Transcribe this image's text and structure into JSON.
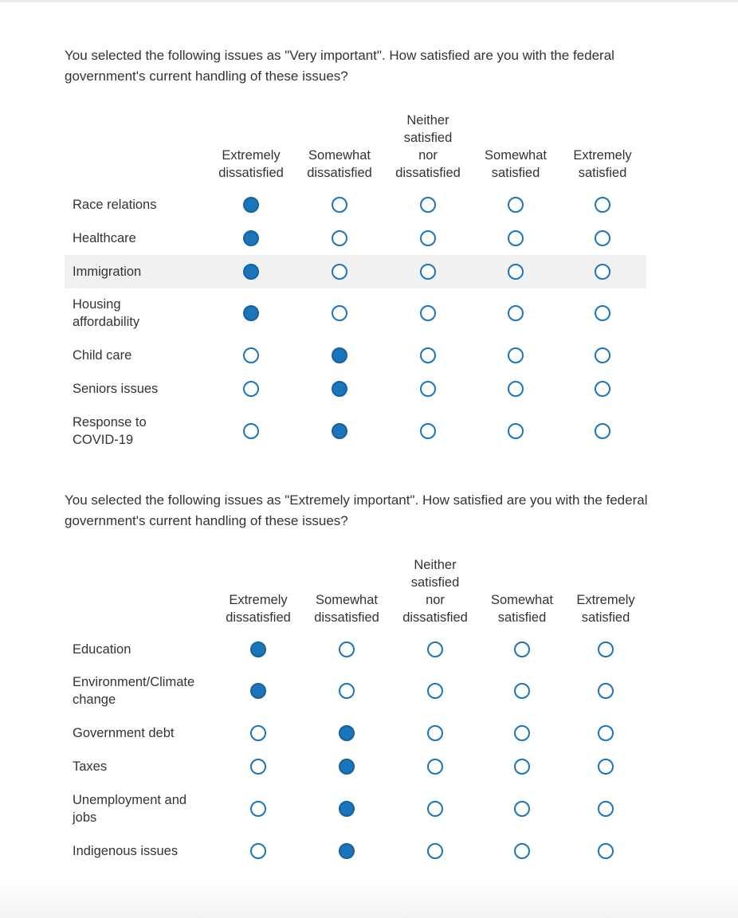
{
  "questions": [
    {
      "text": "You selected the following issues as \"Very important\". How satisfied are you with the federal government's current handling of these issues?",
      "columns": [
        [
          "Extremely",
          "dissatisfied"
        ],
        [
          "Somewhat",
          "dissatisfied"
        ],
        [
          "Neither",
          "satisfied",
          "nor",
          "dissatisfied"
        ],
        [
          "Somewhat",
          "satisfied"
        ],
        [
          "Extremely",
          "satisfied"
        ]
      ],
      "rows": [
        {
          "label": [
            "Race relations"
          ],
          "selected": 0
        },
        {
          "label": [
            "Healthcare"
          ],
          "selected": 0
        },
        {
          "label": [
            "Immigration"
          ],
          "selected": 0,
          "highlighted": true
        },
        {
          "label": [
            "Housing",
            "affordability"
          ],
          "selected": 0
        },
        {
          "label": [
            "Child care"
          ],
          "selected": 1
        },
        {
          "label": [
            "Seniors issues"
          ],
          "selected": 1
        },
        {
          "label": [
            "Response to",
            "COVID-19"
          ],
          "selected": 1
        }
      ]
    },
    {
      "text": "You selected the following issues as \"Extremely important\". How satisfied are you with the federal government's current handling of these issues?",
      "columns": [
        [
          "Extremely",
          "dissatisfied"
        ],
        [
          "Somewhat",
          "dissatisfied"
        ],
        [
          "Neither",
          "satisfied",
          "nor",
          "dissatisfied"
        ],
        [
          "Somewhat",
          "satisfied"
        ],
        [
          "Extremely",
          "satisfied"
        ]
      ],
      "rows": [
        {
          "label": [
            "Education"
          ],
          "selected": 0
        },
        {
          "label": [
            "Environment/Climate",
            "change"
          ],
          "selected": 0
        },
        {
          "label": [
            "Government debt"
          ],
          "selected": 1
        },
        {
          "label": [
            "Taxes"
          ],
          "selected": 1
        },
        {
          "label": [
            "Unemployment and",
            "jobs"
          ],
          "selected": 1
        },
        {
          "label": [
            "Indigenous issues"
          ],
          "selected": 1
        }
      ]
    }
  ],
  "colors": {
    "accent": "#1a75bc",
    "row_highlight": "#f1f1f1",
    "text": "#333333"
  }
}
